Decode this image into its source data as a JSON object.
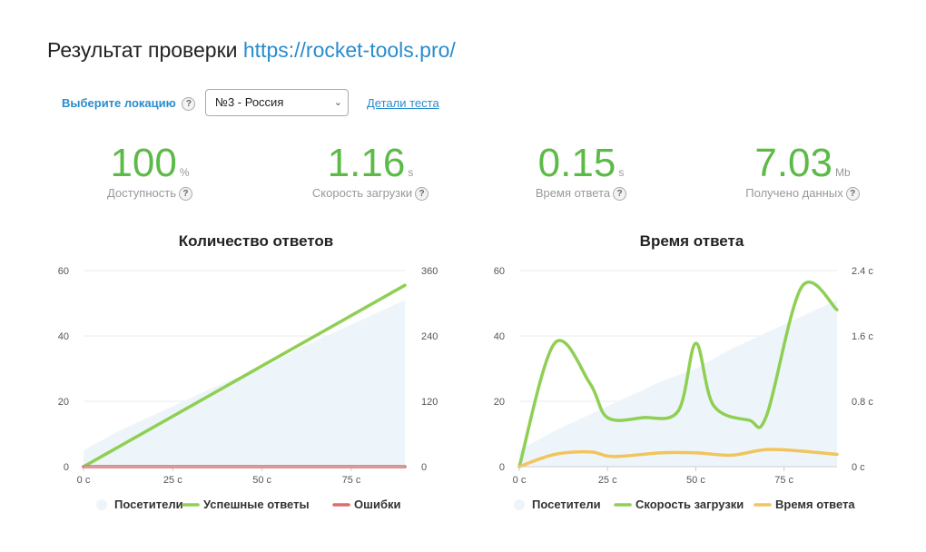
{
  "header": {
    "title_prefix": "Результат проверки",
    "title_url": "https://rocket-tools.pro/"
  },
  "controls": {
    "location_label": "Выберите локацию",
    "location_value": "№3 - Россия",
    "details_link": "Детали теста",
    "help_glyph": "?"
  },
  "metrics": [
    {
      "value": "100",
      "unit": "%",
      "label": "Доступность"
    },
    {
      "value": "1.16",
      "unit": "s",
      "label": "Скорость загрузки"
    },
    {
      "value": "0.15",
      "unit": "s",
      "label": "Время ответа"
    },
    {
      "value": "7.03",
      "unit": "Mb",
      "label": "Получено данных"
    }
  ],
  "colors": {
    "green": "#8fcf54",
    "red": "#e06b6b",
    "yellow": "#f2c45c",
    "area": "#eef5fa",
    "grid": "#ebebeb",
    "accent_blue": "#2a8ccd",
    "metric_green": "#5cba47"
  },
  "chart_data": [
    {
      "type": "line",
      "title": "Количество ответов",
      "x_ticks": [
        "0 с",
        "25 с",
        "50 с",
        "75 с"
      ],
      "x_tick_values": [
        0,
        25,
        50,
        75
      ],
      "x_range": [
        0,
        90
      ],
      "y_left_ticks": [
        "0",
        "20",
        "40",
        "60"
      ],
      "y_left_range": [
        0,
        60
      ],
      "y_right_ticks": [
        "0",
        "120",
        "240",
        "360"
      ],
      "y_right_range": [
        0,
        360
      ],
      "series": [
        {
          "name": "Посетители",
          "type": "area",
          "axis": "left",
          "color": "#eef5fa",
          "x": [
            0,
            10,
            20,
            30,
            40,
            50,
            60,
            70,
            80,
            90
          ],
          "values": [
            5,
            11,
            16,
            21,
            26,
            30,
            36,
            41,
            46,
            51
          ]
        },
        {
          "name": "Успешные ответы",
          "type": "line",
          "axis": "right",
          "color": "#8fcf54",
          "x": [
            0,
            90
          ],
          "values": [
            0,
            333
          ]
        },
        {
          "name": "Ошибки",
          "type": "line",
          "axis": "right",
          "color": "#e06b6b",
          "x": [
            0,
            90
          ],
          "values": [
            0,
            0
          ]
        }
      ]
    },
    {
      "type": "line",
      "title": "Время ответа",
      "x_ticks": [
        "0 с",
        "25 с",
        "50 с",
        "75 с"
      ],
      "x_tick_values": [
        0,
        25,
        50,
        75
      ],
      "x_range": [
        0,
        90
      ],
      "y_left_ticks": [
        "0",
        "20",
        "40",
        "60"
      ],
      "y_left_range": [
        0,
        60
      ],
      "y_right_ticks": [
        "0 с",
        "0.8 с",
        "1.6 с",
        "2.4 с"
      ],
      "y_right_range": [
        0,
        2.4
      ],
      "series": [
        {
          "name": "Посетители",
          "type": "area",
          "axis": "left",
          "color": "#eef5fa",
          "x": [
            0,
            10,
            20,
            30,
            40,
            50,
            60,
            70,
            80,
            90
          ],
          "values": [
            5,
            11,
            16,
            21,
            26,
            30,
            36,
            41,
            46,
            51
          ]
        },
        {
          "name": "Скорость загрузки",
          "type": "line",
          "axis": "right",
          "color": "#8fcf54",
          "x": [
            0,
            10,
            20,
            25,
            35,
            45,
            50,
            55,
            65,
            70,
            80,
            90
          ],
          "values": [
            0,
            1.51,
            1.02,
            0.6,
            0.6,
            0.68,
            1.51,
            0.75,
            0.57,
            0.62,
            2.2,
            1.92
          ]
        },
        {
          "name": "Время ответа",
          "type": "line",
          "axis": "right",
          "color": "#f2c45c",
          "x": [
            0,
            10,
            20,
            25,
            30,
            40,
            50,
            60,
            70,
            80,
            90
          ],
          "values": [
            0,
            0.15,
            0.18,
            0.13,
            0.13,
            0.17,
            0.17,
            0.14,
            0.21,
            0.19,
            0.15
          ]
        }
      ]
    }
  ]
}
